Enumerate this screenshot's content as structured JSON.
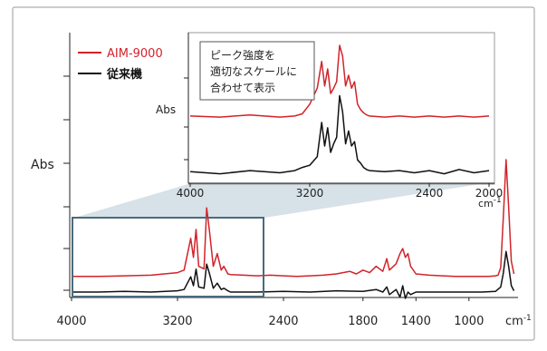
{
  "colors": {
    "aim": "#d2232a",
    "conventional": "#111111",
    "zoom_fill": "#c9d7e0",
    "zoom_frame": "#4a6b7c",
    "axis": "#222222",
    "frame_border": "#9a9a9a"
  },
  "legend": [
    {
      "label": "AIM-9000",
      "color": "#d2232a"
    },
    {
      "label": "従来機",
      "color": "#111111"
    }
  ],
  "callout": {
    "line1": "ピーク強度を",
    "line2": "適切なスケールに",
    "line3": "合わせて表示"
  },
  "chart_data": [
    {
      "type": "line",
      "ylabel": "Abs",
      "xunit": "cm-1",
      "xticks": [
        4000,
        3200,
        2400,
        1800,
        1400,
        1000
      ],
      "xlim": [
        4000,
        650
      ],
      "x_reversed": true,
      "grid": false,
      "legend_placement": "top-left",
      "series": [
        {
          "name": "AIM-9000",
          "color": "#d2232a",
          "x": [
            4000,
            3800,
            3600,
            3400,
            3200,
            3150,
            3100,
            3080,
            3060,
            3040,
            3000,
            2980,
            2960,
            2930,
            2900,
            2870,
            2850,
            2820,
            2800,
            2700,
            2600,
            2500,
            2400,
            2300,
            2200,
            2100,
            2000,
            1900,
            1850,
            1800,
            1750,
            1700,
            1650,
            1620,
            1600,
            1550,
            1520,
            1500,
            1480,
            1460,
            1440,
            1400,
            1300,
            1200,
            1100,
            1000,
            900,
            850,
            800,
            780,
            760,
            740,
            720,
            700,
            680,
            660
          ],
          "y": [
            0.08,
            0.08,
            0.085,
            0.09,
            0.11,
            0.13,
            0.38,
            0.23,
            0.45,
            0.16,
            0.14,
            0.62,
            0.45,
            0.16,
            0.26,
            0.13,
            0.16,
            0.1,
            0.095,
            0.09,
            0.085,
            0.09,
            0.085,
            0.08,
            0.085,
            0.09,
            0.1,
            0.12,
            0.1,
            0.13,
            0.11,
            0.16,
            0.12,
            0.22,
            0.13,
            0.18,
            0.26,
            0.3,
            0.23,
            0.26,
            0.16,
            0.1,
            0.09,
            0.085,
            0.08,
            0.08,
            0.08,
            0.08,
            0.085,
            0.09,
            0.15,
            0.55,
            1.0,
            0.62,
            0.2,
            0.1
          ]
        },
        {
          "name": "従来機",
          "color": "#111111",
          "x": [
            4000,
            3800,
            3600,
            3400,
            3200,
            3150,
            3100,
            3080,
            3060,
            3040,
            3000,
            2980,
            2960,
            2930,
            2900,
            2870,
            2850,
            2820,
            2800,
            2600,
            2400,
            2200,
            2000,
            1800,
            1700,
            1650,
            1620,
            1600,
            1550,
            1520,
            1500,
            1480,
            1460,
            1440,
            1400,
            1300,
            1200,
            1000,
            900,
            800,
            760,
            740,
            720,
            700,
            680,
            660
          ],
          "y": [
            0.0,
            0.0,
            0.005,
            0.0,
            0.01,
            0.02,
            0.12,
            0.05,
            0.18,
            0.04,
            0.03,
            0.22,
            0.15,
            0.03,
            0.07,
            0.02,
            0.03,
            0.01,
            0.0,
            0.0,
            0.005,
            0.0,
            0.01,
            0.005,
            0.02,
            0.0,
            0.04,
            -0.02,
            0.02,
            -0.04,
            0.05,
            -0.05,
            0.0,
            -0.02,
            0.0,
            0.0,
            0.0,
            0.0,
            0.0,
            0.005,
            0.04,
            0.15,
            0.32,
            0.2,
            0.05,
            0.01
          ]
        }
      ]
    },
    {
      "type": "line",
      "ylabel": "Abs",
      "xunit": "cm-1",
      "xticks": [
        4000,
        3200,
        2400,
        2000
      ],
      "xlim": [
        4000,
        2000
      ],
      "x_reversed": true,
      "grid": false,
      "series": [
        {
          "name": "AIM-9000",
          "color": "#d2232a",
          "x": [
            4000,
            3800,
            3600,
            3400,
            3300,
            3250,
            3200,
            3150,
            3120,
            3100,
            3080,
            3060,
            3040,
            3020,
            3000,
            2980,
            2960,
            2940,
            2920,
            2900,
            2880,
            2860,
            2840,
            2820,
            2800,
            2700,
            2600,
            2500,
            2400,
            2300,
            2200,
            2100,
            2000
          ],
          "y": [
            0.34,
            0.33,
            0.35,
            0.33,
            0.34,
            0.36,
            0.45,
            0.6,
            0.85,
            0.62,
            0.78,
            0.55,
            0.6,
            0.66,
            1.0,
            0.9,
            0.62,
            0.72,
            0.6,
            0.66,
            0.45,
            0.4,
            0.37,
            0.35,
            0.34,
            0.33,
            0.34,
            0.33,
            0.34,
            0.33,
            0.34,
            0.33,
            0.34
          ]
        },
        {
          "name": "従来機",
          "color": "#111111",
          "x": [
            4000,
            3800,
            3600,
            3400,
            3300,
            3250,
            3200,
            3150,
            3120,
            3100,
            3080,
            3060,
            3040,
            3020,
            3000,
            2980,
            2960,
            2940,
            2920,
            2900,
            2880,
            2860,
            2840,
            2820,
            2800,
            2700,
            2600,
            2500,
            2400,
            2300,
            2200,
            2100,
            2000
          ],
          "y": [
            0.04,
            0.02,
            0.05,
            0.03,
            0.05,
            0.08,
            0.1,
            0.18,
            0.5,
            0.28,
            0.45,
            0.22,
            0.3,
            0.36,
            0.75,
            0.6,
            0.3,
            0.42,
            0.28,
            0.32,
            0.15,
            0.12,
            0.08,
            0.06,
            0.05,
            0.04,
            0.05,
            0.03,
            0.05,
            0.02,
            0.06,
            0.03,
            0.05
          ]
        }
      ]
    }
  ]
}
